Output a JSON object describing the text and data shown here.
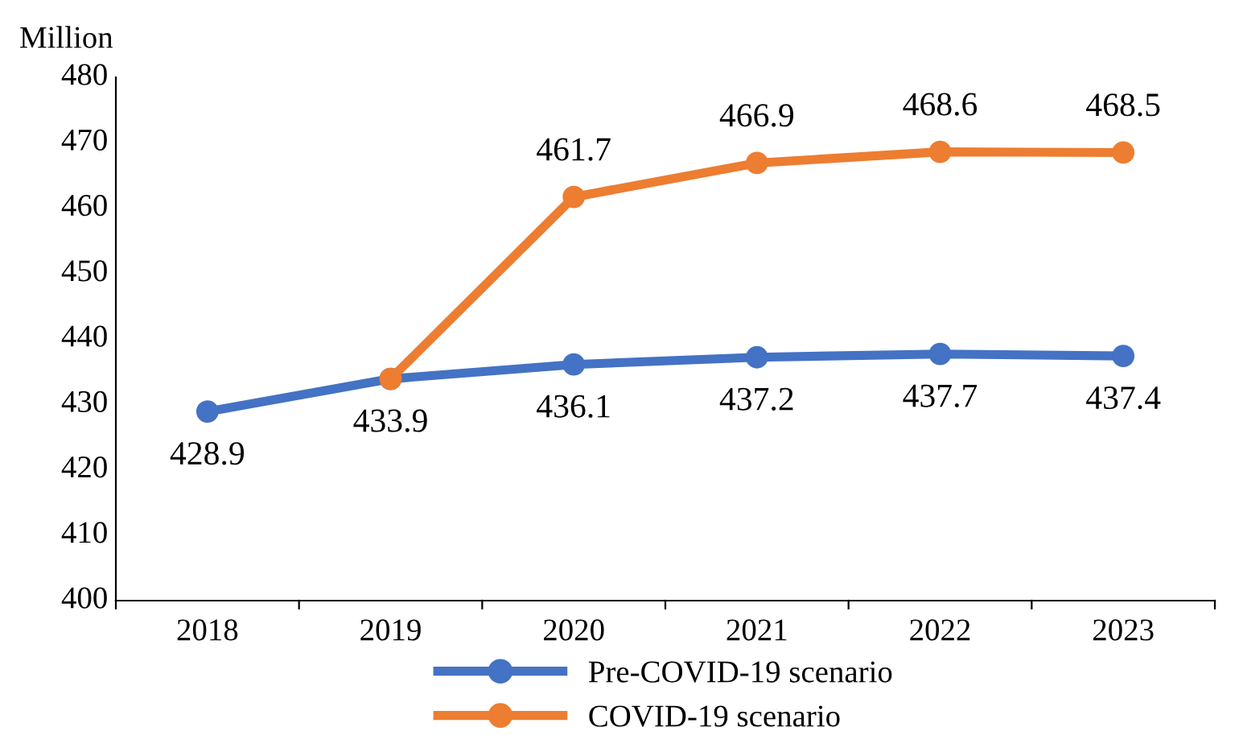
{
  "chart_data": {
    "type": "line",
    "ylabel": "Million",
    "categories": [
      "2018",
      "2019",
      "2020",
      "2021",
      "2022",
      "2023"
    ],
    "series": [
      {
        "name": "Pre-COVID-19 scenario",
        "color": "#4472c4",
        "values": [
          428.9,
          433.9,
          436.1,
          437.2,
          437.7,
          437.4
        ],
        "value_labels": [
          "428.9",
          "433.9",
          "436.1",
          "437.2",
          "437.7",
          "437.4"
        ]
      },
      {
        "name": "COVID-19 scenario",
        "color": "#ed7d31",
        "values": [
          null,
          433.9,
          461.7,
          466.9,
          468.6,
          468.5
        ],
        "value_labels": [
          null,
          null,
          "461.7",
          "466.9",
          "468.6",
          "468.5"
        ]
      }
    ],
    "ylim": [
      400,
      480
    ],
    "yticks": [
      400,
      410,
      420,
      430,
      440,
      450,
      460,
      470,
      480
    ],
    "grid": false,
    "legend": "bottom",
    "marker": "circle",
    "line_style": "solid"
  }
}
